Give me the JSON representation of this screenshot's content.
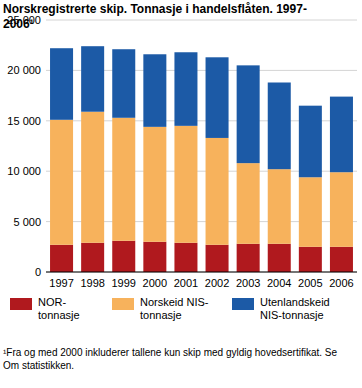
{
  "chart_data": {
    "type": "bar",
    "stacked": true,
    "title": "Norskregistrerte skip. Tonnasje i handelsflåten. 1997-2006¹",
    "footnote": "¹Fra og med 2000 inkluderer tallene kun skip med gyldig hovedsertifikat. Se Om statistikken.",
    "categories": [
      "1997",
      "1998",
      "1999",
      "2000",
      "2001",
      "2002",
      "2003",
      "2004",
      "2005",
      "2006"
    ],
    "series": [
      {
        "name": "NOR-tonnasje",
        "color": "#b0191e",
        "values": [
          2700,
          2900,
          3100,
          3000,
          2900,
          2700,
          2800,
          2800,
          2500,
          2500
        ]
      },
      {
        "name": "Norskeid NIS-tonnasje",
        "color": "#f7b25c",
        "values": [
          12400,
          13000,
          12200,
          11400,
          11600,
          10600,
          8000,
          7400,
          6900,
          7400
        ]
      },
      {
        "name": "Utenlandskeid NIS-tonnasje",
        "color": "#1c5aa6",
        "values": [
          7100,
          6500,
          6800,
          7200,
          7300,
          8000,
          9700,
          8600,
          7100,
          7500
        ]
      }
    ],
    "ylim": [
      0,
      25000
    ],
    "yticks": [
      0,
      {
        "value": 5000,
        "label": "5 000"
      },
      {
        "value": 10000,
        "label": "10 000"
      },
      {
        "value": 15000,
        "label": "15 000"
      },
      {
        "value": 20000,
        "label": "20 000"
      },
      {
        "value": 25000,
        "label": "25 000"
      }
    ],
    "grid": true,
    "legend": "bottom"
  }
}
